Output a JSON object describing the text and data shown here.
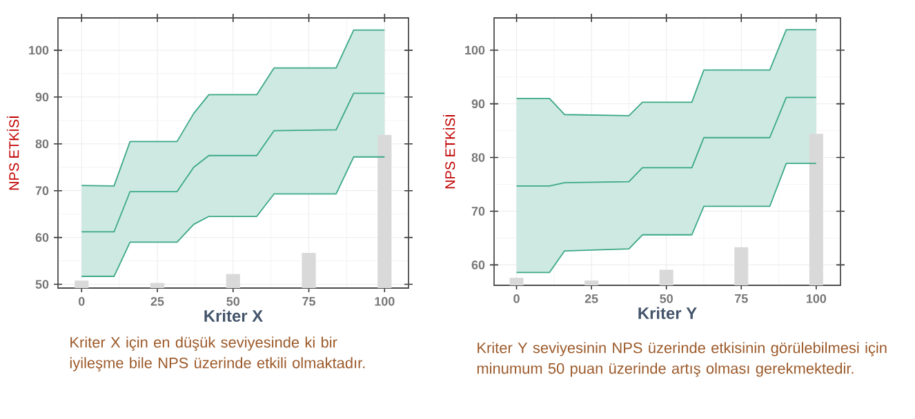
{
  "chart_data": [
    {
      "type": "line",
      "xlabel": "Kriter X",
      "ylabel": "NPS ETKİSİ",
      "xlim": [
        -7.8,
        107.9
      ],
      "ylim": [
        49.2,
        106.9
      ],
      "xticks": [
        0,
        25,
        50,
        75,
        100
      ],
      "yticks": [
        50,
        60,
        70,
        80,
        90,
        100
      ],
      "grid": true,
      "series": [
        {
          "color": "#3aa886",
          "x": [
            0,
            10.7,
            16,
            31.5,
            37,
            42,
            57.8,
            63.5,
            84,
            89.8,
            100
          ],
          "values": [
            61.2,
            61.2,
            69.8,
            69.8,
            75,
            77.5,
            77.5,
            82.8,
            83,
            90.8,
            90.8
          ],
          "lower": [
            51.7,
            51.7,
            59,
            59,
            62.8,
            64.5,
            64.5,
            69.3,
            69.3,
            77.2,
            77.2
          ],
          "upper": [
            71.1,
            71,
            80.5,
            80.5,
            86.5,
            90.5,
            90.5,
            96.2,
            96.2,
            104.3,
            104.3
          ]
        },
        {
          "color": "#3aa886",
          "x": [
            0,
            10.7,
            16,
            31.5,
            37,
            42,
            57.8,
            63.5,
            84,
            89.8,
            100
          ],
          "values": [
            51.7,
            51.7,
            59,
            59,
            62.8,
            64.5,
            64.5,
            69.3,
            69.3,
            77.2,
            77.2
          ]
        },
        {
          "color": "#3aa886",
          "x": [
            0,
            10.7,
            16,
            31.5,
            37,
            42,
            57.8,
            63.5,
            84,
            89.8,
            100
          ],
          "values": [
            71.1,
            71,
            80.5,
            80.5,
            86.5,
            90.5,
            90.5,
            96.2,
            96.2,
            104.3,
            104.3
          ]
        },
        {
          "type": "bar",
          "color": "#d9d9d9",
          "x": [
            0,
            25,
            50,
            75,
            100
          ],
          "values": [
            50.8,
            50.3,
            52.2,
            56.7,
            81.9
          ]
        }
      ],
      "annotations": [
        "Kriter X için en düşük seviyesinde ki bir iyileşme bile NPS üzerinde etkili olmaktadır."
      ]
    },
    {
      "type": "line",
      "xlabel": "Kriter Y",
      "ylabel": "NPS ETKİSİ",
      "xlim": [
        -7.5,
        108.1
      ],
      "ylim": [
        56.2,
        106
      ],
      "xticks": [
        0,
        25,
        50,
        75,
        100
      ],
      "yticks": [
        60,
        70,
        80,
        90,
        100
      ],
      "grid": true,
      "series": [
        {
          "color": "#3aa886",
          "x": [
            0,
            11,
            16,
            37.5,
            42,
            58.5,
            62.5,
            84.5,
            90,
            100
          ],
          "values": [
            74.7,
            74.7,
            75.3,
            75.5,
            78.1,
            78.1,
            83.7,
            83.7,
            91.2,
            91.2
          ],
          "lower": [
            58.6,
            58.6,
            62.6,
            63,
            65.6,
            65.6,
            70.9,
            70.9,
            78.9,
            78.9
          ],
          "upper": [
            91,
            91,
            88,
            87.8,
            90.3,
            90.3,
            96.3,
            96.3,
            103.8,
            103.8
          ]
        },
        {
          "color": "#3aa886",
          "x": [
            0,
            11,
            16,
            37.5,
            42,
            58.5,
            62.5,
            84.5,
            90,
            100
          ],
          "values": [
            58.6,
            58.6,
            62.6,
            63,
            65.6,
            65.6,
            70.9,
            70.9,
            78.9,
            78.9
          ]
        },
        {
          "color": "#3aa886",
          "x": [
            0,
            11,
            16,
            37.5,
            42,
            58.5,
            62.5,
            84.5,
            90,
            100
          ],
          "values": [
            91,
            91,
            88,
            87.8,
            90.3,
            90.3,
            96.3,
            96.3,
            103.8,
            103.8
          ]
        },
        {
          "type": "bar",
          "color": "#d9d9d9",
          "x": [
            0,
            25,
            50,
            75,
            100
          ],
          "values": [
            57.6,
            57.1,
            59.1,
            63.3,
            84.4
          ]
        }
      ],
      "annotations": [
        "Kriter Y seviyesinin NPS üzerinde etkisinin görülebilmesi için minumum 50 puan üzerinde artış olması gerekmektedir."
      ]
    }
  ]
}
